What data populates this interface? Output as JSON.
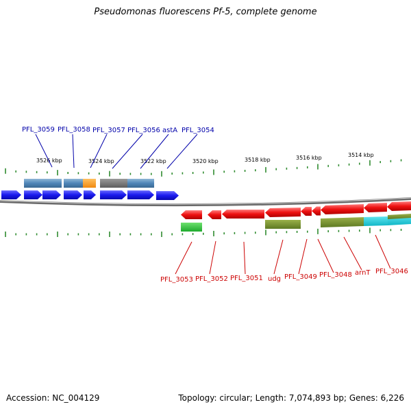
{
  "title": "Pseudomonas fluorescens Pf-5, complete genome",
  "footer": {
    "accession": "Accession: NC_004129",
    "info": "Topology: circular; Length: 7,074,893 bp; Genes: 6,226"
  },
  "colors": {
    "upper_label": "#0000aa",
    "lower_label": "#cc0000",
    "tick": "#2e8b2e",
    "forward_gene": "#1a1aee",
    "reverse_gene": "#ee1111",
    "backbone": "#777777"
  },
  "position_labels": [
    "3526 kbp",
    "3524 kbp",
    "3522 kbp",
    "3520 kbp",
    "3518 kbp",
    "3516 kbp",
    "3514 kbp"
  ],
  "upper_gene_labels": [
    "PFL_3059",
    "PFL_3058",
    "PFL_3057",
    "PFL_3056",
    "astA",
    "PFL_3054"
  ],
  "lower_gene_labels": [
    "PFL_3053",
    "PFL_3052",
    "PFL_3051",
    "udg",
    "PFL_3049",
    "PFL_3048",
    "arnT",
    "PFL_3046"
  ]
}
